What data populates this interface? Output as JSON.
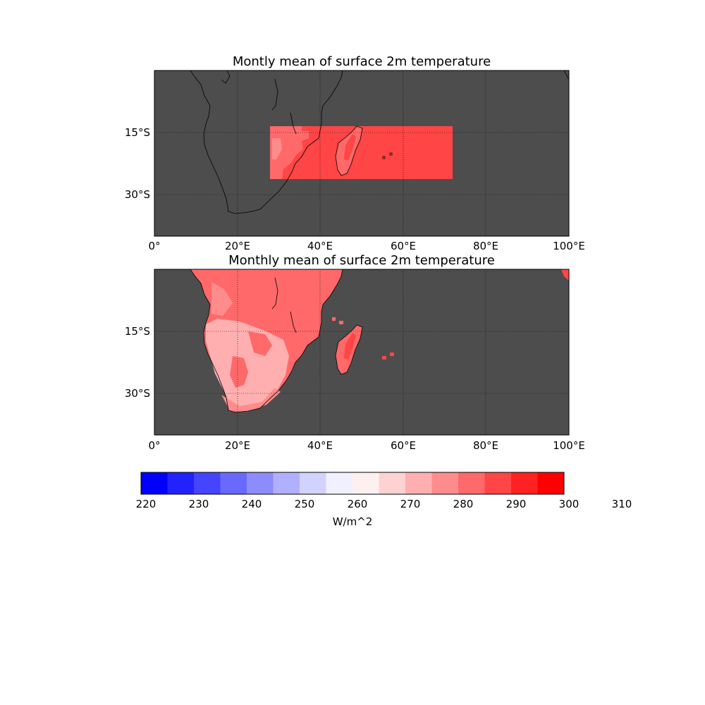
{
  "figure": {
    "panels": [
      {
        "title": "Montly mean of surface 2m temperature",
        "lat_ticks": [
          "15°S",
          "30°S"
        ],
        "lon_ticks": [
          "0°",
          "20°E",
          "40°E",
          "60°E",
          "80°E",
          "100°E"
        ],
        "extent": {
          "lon": [
            0,
            100
          ],
          "lat": [
            -42,
            2
          ]
        },
        "background_color": "#4d4d4d"
      },
      {
        "title": "Monthly mean of surface 2m temperature",
        "lat_ticks": [
          "15°S",
          "30°S"
        ],
        "lon_ticks": [
          "0°",
          "20°E",
          "40°E",
          "60°E",
          "80°E",
          "100°E"
        ],
        "extent": {
          "lon": [
            0,
            100
          ],
          "lat": [
            -42,
            2
          ]
        },
        "background_color": "#4d4d4d"
      }
    ],
    "colorbar": {
      "label": "W/m^2",
      "tick_labels": [
        "220",
        "230",
        "240",
        "250",
        "260",
        "270",
        "280",
        "290",
        "300",
        "310"
      ],
      "levels": [
        220,
        225,
        230,
        235,
        240,
        245,
        250,
        255,
        260,
        265,
        270,
        275,
        280,
        285,
        290,
        295,
        300,
        305,
        310,
        317
      ],
      "colors": [
        "#0000ff",
        "#2222ff",
        "#4545ff",
        "#6969ff",
        "#8c8cff",
        "#b0b0ff",
        "#d2d2ff",
        "#f0f0ff",
        "#fff0f0",
        "#ffd2d2",
        "#ffafaf",
        "#ff8c8c",
        "#ff6969",
        "#ff4545",
        "#ff2222",
        "#ff0000"
      ]
    },
    "field_colors": {
      "warm": "#ff6969",
      "hot": "#ff4545",
      "mild": "#ff8c8c",
      "cool": "#ffafaf"
    }
  }
}
